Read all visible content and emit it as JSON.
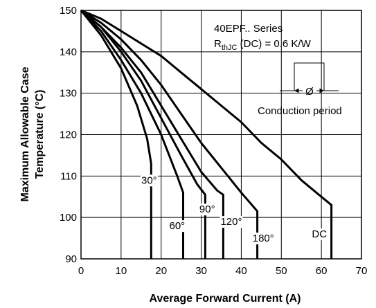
{
  "chart_data": {
    "type": "line",
    "xlabel": "Average Forward Current (A)",
    "ylabel_line1": "Maximum Allowable Case",
    "ylabel_line2": "Temperature (°C)",
    "xlim": [
      0,
      70
    ],
    "ylim": [
      90,
      150
    ],
    "xticks": [
      0,
      10,
      20,
      30,
      40,
      50,
      60,
      70
    ],
    "yticks": [
      90,
      100,
      110,
      120,
      130,
      140,
      150
    ],
    "grid": true,
    "annotations": {
      "series_name": "40EPF.. Series",
      "rth_prefix": "R",
      "rth_sub": "thJC",
      "rth_suffix": " (DC) = 0.6 K/W",
      "phi": "Ø",
      "conduction": "Conduction period"
    },
    "series": [
      {
        "name": "30°",
        "label_at": [
          17,
          109
        ],
        "points": [
          [
            0,
            150
          ],
          [
            5,
            144
          ],
          [
            10,
            136
          ],
          [
            14,
            127
          ],
          [
            16.5,
            119
          ],
          [
            17.5,
            113
          ],
          [
            17.5,
            107
          ],
          [
            17.5,
            90
          ]
        ]
      },
      {
        "name": "60°",
        "label_at": [
          24,
          98
        ],
        "points": [
          [
            0,
            150
          ],
          [
            5,
            145
          ],
          [
            10,
            138
          ],
          [
            15,
            130
          ],
          [
            20,
            120
          ],
          [
            24,
            110
          ],
          [
            25.5,
            106
          ],
          [
            25.5,
            90
          ]
        ]
      },
      {
        "name": "90°",
        "label_at": [
          31.5,
          102
        ],
        "points": [
          [
            0,
            150
          ],
          [
            5,
            146
          ],
          [
            10,
            140
          ],
          [
            15,
            133
          ],
          [
            20,
            124
          ],
          [
            25,
            115
          ],
          [
            29,
            108
          ],
          [
            31,
            105.5
          ],
          [
            31,
            90
          ]
        ]
      },
      {
        "name": "120°",
        "label_at": [
          37.5,
          99
        ],
        "points": [
          [
            0,
            150
          ],
          [
            5,
            146
          ],
          [
            10,
            141
          ],
          [
            15,
            135
          ],
          [
            20,
            127
          ],
          [
            25,
            119
          ],
          [
            30,
            111
          ],
          [
            34,
            106.5
          ],
          [
            35.5,
            105.5
          ],
          [
            35.5,
            90
          ]
        ]
      },
      {
        "name": "180°",
        "label_at": [
          45.5,
          95
        ],
        "points": [
          [
            0,
            150
          ],
          [
            5,
            147
          ],
          [
            10,
            143
          ],
          [
            15,
            138
          ],
          [
            20,
            132
          ],
          [
            25,
            125
          ],
          [
            30,
            118
          ],
          [
            35,
            112
          ],
          [
            40,
            106
          ],
          [
            44,
            101.5
          ],
          [
            44,
            90
          ]
        ]
      },
      {
        "name": "DC",
        "label_at": [
          59.5,
          96
        ],
        "points": [
          [
            0,
            150
          ],
          [
            5,
            148
          ],
          [
            10,
            145
          ],
          [
            15,
            142
          ],
          [
            20,
            139
          ],
          [
            25,
            135
          ],
          [
            30,
            131
          ],
          [
            35,
            127
          ],
          [
            40,
            123
          ],
          [
            45,
            118
          ],
          [
            50,
            114
          ],
          [
            55,
            109
          ],
          [
            60,
            105
          ],
          [
            62.5,
            103
          ],
          [
            62.5,
            90
          ]
        ]
      }
    ]
  }
}
